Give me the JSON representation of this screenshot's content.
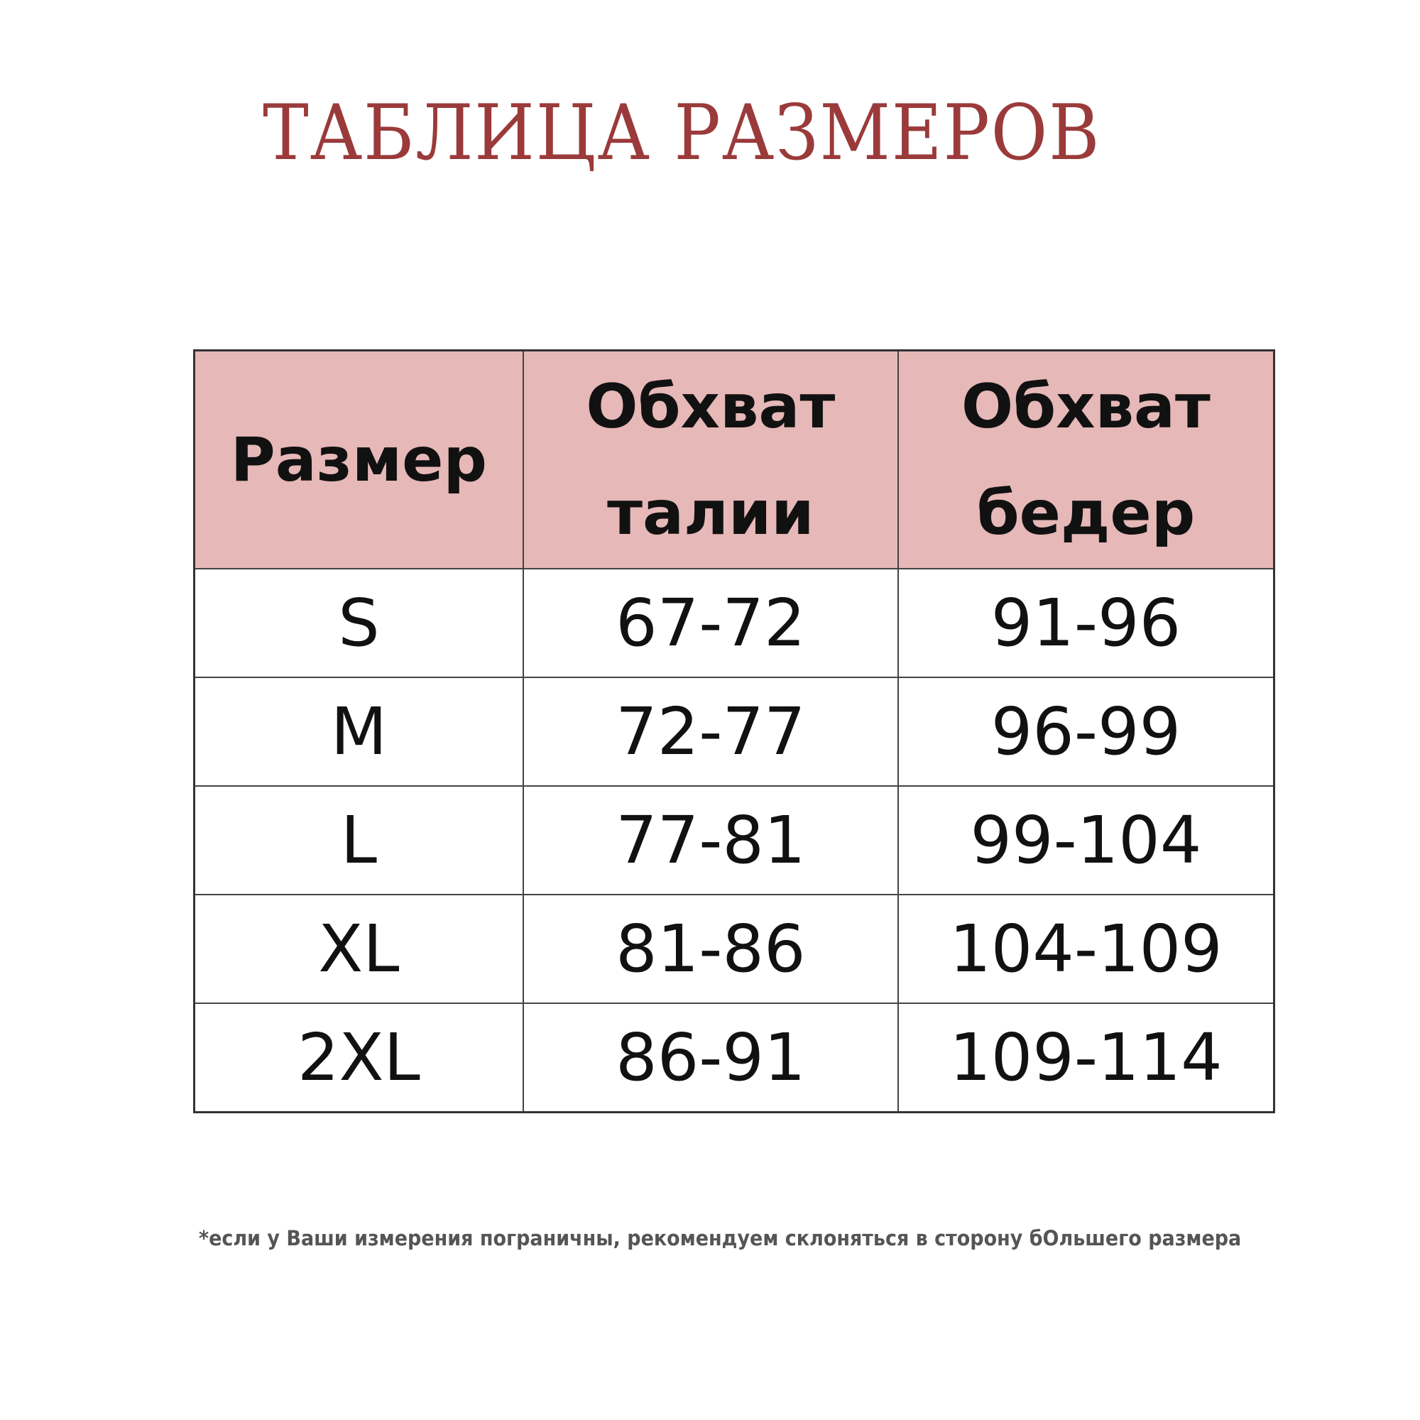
{
  "title": "ТАБЛИЦА РАЗМЕРОВ",
  "colors": {
    "title": "#9b3a3a",
    "header_bg": "#e6b8b7"
  },
  "table": {
    "headers": [
      [
        "Размер"
      ],
      [
        "Обхват",
        "талии"
      ],
      [
        "Обхват",
        "бедер"
      ]
    ],
    "rows": [
      [
        "S",
        "67-72",
        "91-96"
      ],
      [
        "M",
        "72-77",
        "96-99"
      ],
      [
        "L",
        "77-81",
        "99-104"
      ],
      [
        "XL",
        "81-86",
        "104-109"
      ],
      [
        "2XL",
        "86-91",
        "109-114"
      ]
    ]
  },
  "footnote": "*если у Ваши измерения пограничны, рекомендуем склоняться в сторону бОльшего размера"
}
